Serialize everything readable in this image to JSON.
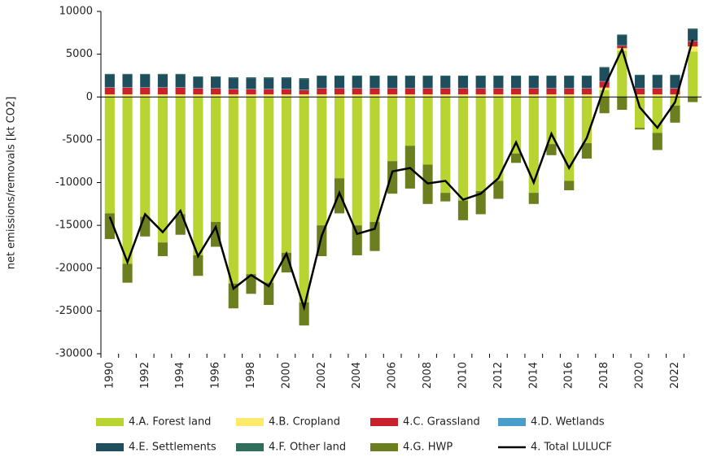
{
  "chart_data": {
    "type": "bar",
    "stacked": true,
    "y_label": "net emissions/removals [kt CO2]",
    "categories": [
      "1990",
      null,
      "1992",
      null,
      "1994",
      null,
      "1996",
      null,
      "1998",
      null,
      "2000",
      null,
      "2002",
      null,
      "2004",
      null,
      "2006",
      null,
      "2008",
      null,
      "2010",
      null,
      "2012",
      null,
      "2014",
      null,
      "2016",
      null,
      "2018",
      null,
      "2020",
      null,
      "2022",
      null
    ],
    "ylim": [
      -30000,
      10000
    ],
    "yticks": [
      -30000,
      -25000,
      -20000,
      -15000,
      -10000,
      -5000,
      0,
      5000,
      10000
    ],
    "series": [
      {
        "name": "4.A. Forest land",
        "color": "#b8d432",
        "values": [
          -13600,
          -19500,
          -14000,
          -17000,
          -13700,
          -18500,
          -14600,
          -21800,
          -20700,
          -21700,
          -18200,
          -24000,
          -15000,
          -9500,
          -15000,
          -14600,
          -7500,
          -5700,
          -7900,
          -11200,
          -12100,
          -11000,
          -9800,
          -6600,
          -11200,
          -5500,
          -9800,
          -5400,
          800,
          5400,
          -3600,
          -4200,
          -1000,
          5300
        ]
      },
      {
        "name": "4.B. Cropland",
        "color": "#fde96a",
        "values": [
          300,
          300,
          300,
          300,
          300,
          300,
          300,
          300,
          300,
          300,
          300,
          300,
          300,
          300,
          300,
          300,
          300,
          300,
          300,
          300,
          300,
          300,
          300,
          300,
          300,
          300,
          300,
          300,
          300,
          300,
          300,
          300,
          300,
          600
        ]
      },
      {
        "name": "4.C. Grassland",
        "color": "#c8232c",
        "values": [
          800,
          800,
          800,
          800,
          800,
          700,
          700,
          600,
          600,
          600,
          600,
          500,
          700,
          700,
          700,
          700,
          700,
          700,
          700,
          700,
          700,
          700,
          700,
          700,
          700,
          700,
          700,
          700,
          700,
          300,
          700,
          700,
          700,
          600
        ]
      },
      {
        "name": "4.D. Wetlands",
        "color": "#4a9cc9",
        "values": [
          50,
          50,
          50,
          50,
          50,
          50,
          50,
          50,
          50,
          50,
          50,
          50,
          50,
          50,
          50,
          50,
          50,
          50,
          50,
          50,
          50,
          50,
          50,
          50,
          50,
          50,
          50,
          50,
          50,
          50,
          50,
          50,
          50,
          50
        ]
      },
      {
        "name": "4.E. Settlements",
        "color": "#1f4e5f",
        "values": [
          1450,
          1450,
          1450,
          1450,
          1450,
          1250,
          1250,
          1250,
          1250,
          1250,
          1250,
          1250,
          1350,
          1350,
          1350,
          1350,
          1350,
          1350,
          1350,
          1350,
          1350,
          1350,
          1350,
          1350,
          1350,
          1350,
          1350,
          1350,
          1550,
          1150,
          1450,
          1450,
          1450,
          1350
        ]
      },
      {
        "name": "4.F. Other land",
        "color": "#2e6e5a",
        "values": [
          100,
          100,
          100,
          100,
          100,
          100,
          100,
          100,
          100,
          100,
          100,
          100,
          100,
          100,
          100,
          100,
          100,
          100,
          100,
          100,
          100,
          100,
          100,
          100,
          100,
          100,
          100,
          100,
          100,
          100,
          100,
          100,
          100,
          100
        ]
      },
      {
        "name": "4.G. HWP",
        "color": "#6b7f1f",
        "values": [
          -3000,
          -2200,
          -2300,
          -1600,
          -2400,
          -2400,
          -2900,
          -2900,
          -2300,
          -2600,
          -2300,
          -2700,
          -3600,
          -4100,
          -3500,
          -3400,
          -3800,
          -5000,
          -4600,
          -1000,
          -2300,
          -2700,
          -2100,
          -1100,
          -1300,
          -1300,
          -1100,
          -1800,
          -1900,
          -1500,
          -200,
          -2000,
          -2000,
          -600
        ]
      },
      {
        "name": "4. Total LULUCF",
        "type": "line",
        "color": "#000000",
        "values": [
          -14000,
          -19300,
          -13700,
          -15800,
          -13300,
          -18600,
          -15200,
          -22400,
          -20800,
          -22100,
          -18300,
          -24600,
          -16200,
          -11200,
          -16000,
          -15400,
          -8700,
          -8300,
          -10100,
          -9800,
          -12000,
          -11300,
          -9500,
          -5300,
          -10000,
          -4300,
          -8300,
          -4800,
          1200,
          5600,
          -1200,
          -3600,
          -600,
          6700
        ]
      }
    ]
  }
}
